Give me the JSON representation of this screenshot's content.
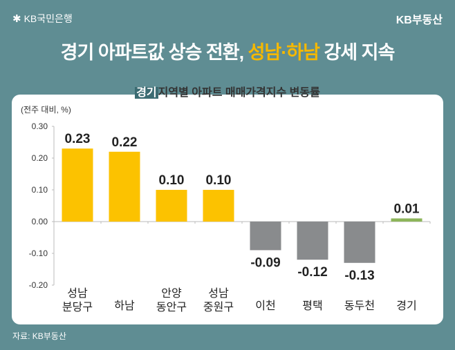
{
  "header": {
    "logo_text": "KB국민은행",
    "brand": "KB부동산"
  },
  "headline": {
    "part1": "경기 아파트값 상승 전환, ",
    "highlight": "성남·하남",
    "part2": " 강세 지속"
  },
  "subtitle": {
    "tag": "경기",
    "text": "지역별 아파트 매매가격지수 변동률"
  },
  "source": "자료: KB부동산",
  "colors": {
    "background": "#5f8d93",
    "positive": "#fcc200",
    "negative": "#898b8d",
    "total": "#8db55a",
    "highlight": "#f5b800"
  },
  "chart_data": {
    "type": "bar",
    "title": "경기 지역별 아파트 매매가격지수 변동률",
    "ylabel": "(전주 대비, %)",
    "categories": [
      [
        "성남",
        "분당구"
      ],
      [
        "하남"
      ],
      [
        "안양",
        "동안구"
      ],
      [
        "성남",
        "중원구"
      ],
      [
        "이천"
      ],
      [
        "평택"
      ],
      [
        "동두천"
      ],
      [
        "경기"
      ]
    ],
    "values": [
      0.23,
      0.22,
      0.1,
      0.1,
      -0.09,
      -0.12,
      -0.13,
      0.01
    ],
    "value_labels": [
      "0.23",
      "0.22",
      "0.10",
      "0.10",
      "-0.09",
      "-0.12",
      "-0.13",
      "0.01"
    ],
    "yticks": [
      "0.30",
      "0.20",
      "0.10",
      "0.00",
      "-0.10",
      "-0.20"
    ],
    "ytick_values": [
      0.3,
      0.2,
      0.1,
      0,
      -0.1,
      -0.2
    ],
    "ylim": [
      -0.2,
      0.3
    ],
    "grid": false
  }
}
